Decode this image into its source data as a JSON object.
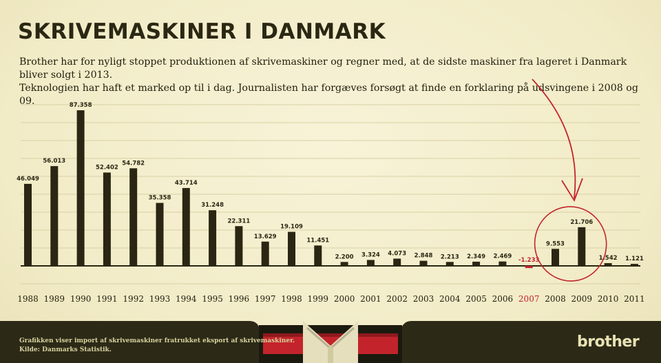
{
  "header": {
    "title": "SKRIVEMASKINER I DANMARK",
    "subtitle_line1": "Brother har for nyligt stoppet produktionen af skrivemaskiner og regner med, at de sidste maskiner fra lageret i Danmark bliver solgt i 2013.",
    "subtitle_line2": "Teknologien har haft et marked op til i dag. Journalisten har forgæves forsøgt at finde en forklaring på udsvingene i 2008 og 09."
  },
  "footer": {
    "note_line1": "Grafikken viser import af skrivemaskiner fratrukket eksport af skrivemaskiner.",
    "note_line2": "Kilde: Danmarks Statistik.",
    "brand": "brother"
  },
  "colors": {
    "bar": "#2a2613",
    "negative": "#c3242b",
    "grid": "#d8d0a4",
    "footer_bg": "#2c2a17",
    "annotation": "#c3242b"
  },
  "chart_data": {
    "type": "bar",
    "categories": [
      "1988",
      "1989",
      "1990",
      "1991",
      "1992",
      "1993",
      "1994",
      "1995",
      "1996",
      "1997",
      "1998",
      "1999",
      "2000",
      "2001",
      "2002",
      "2003",
      "2004",
      "2005",
      "2006",
      "2007",
      "2008",
      "2009",
      "2010",
      "2011"
    ],
    "values": [
      46049,
      56013,
      87358,
      52402,
      54782,
      35358,
      43714,
      31248,
      22311,
      13629,
      19109,
      11451,
      2200,
      3324,
      4073,
      2848,
      2213,
      2349,
      2469,
      -1233,
      9553,
      21706,
      1542,
      1121
    ],
    "value_labels": [
      "46.049",
      "56.013",
      "87.358",
      "52.402",
      "54.782",
      "35.358",
      "43.714",
      "31.248",
      "22.311",
      "13.629",
      "19.109",
      "11.451",
      "2.200",
      "3.324",
      "4.073",
      "2.848",
      "2.213",
      "2.349",
      "2.469",
      "-1.233",
      "9.553",
      "21.706",
      "1.542",
      "1.121"
    ],
    "title": "SKRIVEMASKINER I DANMARK",
    "xlabel": "",
    "ylabel": "",
    "grid": true,
    "highlight": {
      "category": "2007",
      "color": "#c3242b"
    },
    "annotation": {
      "type": "circle-arrow",
      "categories": [
        "2008",
        "2009"
      ]
    }
  }
}
